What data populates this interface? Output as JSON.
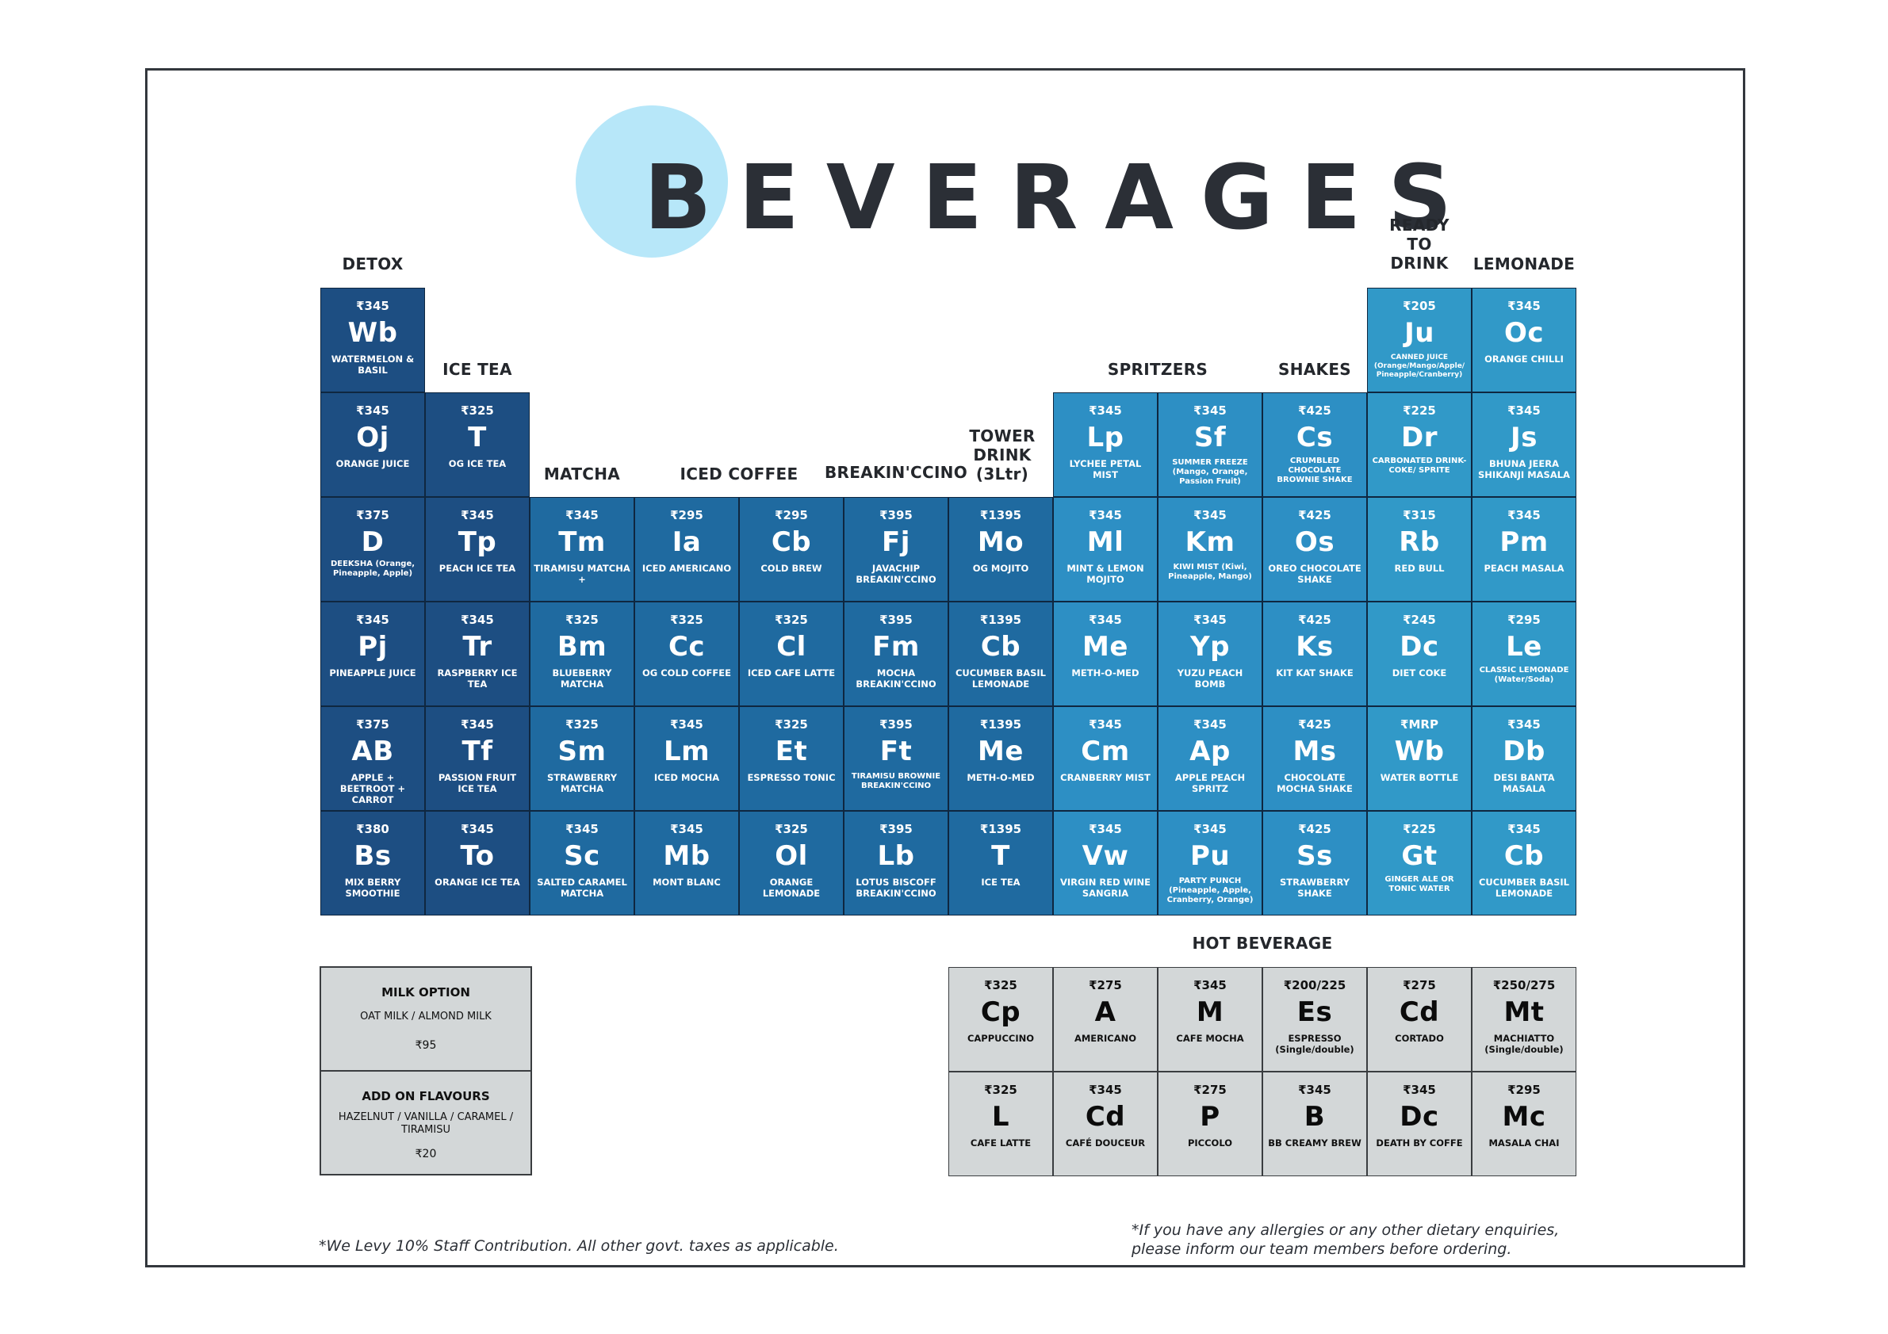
{
  "title": "BEVERAGES",
  "category_labels": [
    {
      "text": "DETOX"
    },
    {
      "text": "ICE TEA"
    },
    {
      "text": "MATCHA"
    },
    {
      "text": "ICED COFFEE"
    },
    {
      "text": "BREAKIN'CCINO"
    },
    {
      "text": "TOWER DRINK (3Ltr)"
    },
    {
      "text": "SPRITZERS"
    },
    {
      "text": "SHAKES"
    },
    {
      "text": "READY TO DRINK"
    },
    {
      "text": "LEMONADE"
    },
    {
      "text": "HOT BEVERAGE"
    }
  ],
  "beverage_cells": [
    {
      "price": "₹345",
      "symbol": "Wb",
      "name": "WATERMELON & BASIL"
    },
    {
      "price": "₹345",
      "symbol": "Oj",
      "name": "ORANGE JUICE"
    },
    {
      "price": "₹375",
      "symbol": "D",
      "name": "DEEKSHA (Orange, Pineapple, Apple)"
    },
    {
      "price": "₹345",
      "symbol": "Pj",
      "name": "PINEAPPLE JUICE"
    },
    {
      "price": "₹375",
      "symbol": "AB",
      "name": "APPLE + BEETROOT + CARROT"
    },
    {
      "price": "₹380",
      "symbol": "Bs",
      "name": "MIX BERRY SMOOTHIE"
    },
    {
      "price": "₹325",
      "symbol": "T",
      "name": "OG ICE TEA"
    },
    {
      "price": "₹345",
      "symbol": "Tp",
      "name": "PEACH ICE TEA"
    },
    {
      "price": "₹345",
      "symbol": "Tr",
      "name": "RASPBERRY ICE TEA"
    },
    {
      "price": "₹345",
      "symbol": "Tf",
      "name": "PASSION FRUIT ICE TEA"
    },
    {
      "price": "₹345",
      "symbol": "To",
      "name": "ORANGE ICE TEA"
    },
    {
      "price": "₹345",
      "symbol": "Tm",
      "name": "TIRAMISU MATCHA +"
    },
    {
      "price": "₹325",
      "symbol": "Bm",
      "name": "BLUEBERRY MATCHA"
    },
    {
      "price": "₹325",
      "symbol": "Sm",
      "name": "STRAWBERRY MATCHA"
    },
    {
      "price": "₹345",
      "symbol": "Sc",
      "name": "SALTED CARAMEL MATCHA"
    },
    {
      "price": "₹295",
      "symbol": "Ia",
      "name": "ICED AMERICANO"
    },
    {
      "price": "₹325",
      "symbol": "Cc",
      "name": "OG COLD COFFEE"
    },
    {
      "price": "₹345",
      "symbol": "Lm",
      "name": "ICED MOCHA"
    },
    {
      "price": "₹345",
      "symbol": "Mb",
      "name": "MONT BLANC"
    },
    {
      "price": "₹295",
      "symbol": "Cb",
      "name": "COLD BREW"
    },
    {
      "price": "₹325",
      "symbol": "Cl",
      "name": "ICED CAFE LATTE"
    },
    {
      "price": "₹325",
      "symbol": "Et",
      "name": "ESPRESSO TONIC"
    },
    {
      "price": "₹325",
      "symbol": "Ol",
      "name": "ORANGE LEMONADE"
    },
    {
      "price": "₹395",
      "symbol": "Fj",
      "name": "JAVACHIP BREAKIN'CCINO"
    },
    {
      "price": "₹395",
      "symbol": "Fm",
      "name": "MOCHA BREAKIN'CCINO"
    },
    {
      "price": "₹395",
      "symbol": "Ft",
      "name": "TIRAMISU BROWNIE BREAKIN'CCINO"
    },
    {
      "price": "₹395",
      "symbol": "Lb",
      "name": "LOTUS BISCOFF BREAKIN'CCINO"
    },
    {
      "price": "₹1395",
      "symbol": "Mo",
      "name": "OG MOJITO"
    },
    {
      "price": "₹1395",
      "symbol": "Cb",
      "name": "CUCUMBER BASIL LEMONADE"
    },
    {
      "price": "₹1395",
      "symbol": "Me",
      "name": "METH-O-MED"
    },
    {
      "price": "₹1395",
      "symbol": "T",
      "name": "ICE TEA"
    },
    {
      "price": "₹345",
      "symbol": "Lp",
      "name": "LYCHEE PETAL MIST"
    },
    {
      "price": "₹345",
      "symbol": "Ml",
      "name": "MINT & LEMON MOJITO"
    },
    {
      "price": "₹345",
      "symbol": "Me",
      "name": "METH-O-MED"
    },
    {
      "price": "₹345",
      "symbol": "Cm",
      "name": "CRANBERRY MIST"
    },
    {
      "price": "₹345",
      "symbol": "Vw",
      "name": "VIRGIN RED WINE SANGRIA"
    },
    {
      "price": "₹345",
      "symbol": "Sf",
      "name": "SUMMER FREEZE (Mango, Orange, Passion Fruit)"
    },
    {
      "price": "₹345",
      "symbol": "Km",
      "name": "KIWI MIST (Kiwi, Pineapple, Mango)"
    },
    {
      "price": "₹345",
      "symbol": "Yp",
      "name": "YUZU PEACH BOMB"
    },
    {
      "price": "₹345",
      "symbol": "Ap",
      "name": "APPLE PEACH SPRITZ"
    },
    {
      "price": "₹345",
      "symbol": "Pu",
      "name": "PARTY PUNCH (Pineapple, Apple, Cranberry, Orange)"
    },
    {
      "price": "₹425",
      "symbol": "Cs",
      "name": "CRUMBLED CHOCOLATE BROWNIE SHAKE"
    },
    {
      "price": "₹425",
      "symbol": "Os",
      "name": "OREO CHOCOLATE SHAKE"
    },
    {
      "price": "₹425",
      "symbol": "Ks",
      "name": "KIT KAT SHAKE"
    },
    {
      "price": "₹425",
      "symbol": "Ms",
      "name": "CHOCOLATE MOCHA SHAKE"
    },
    {
      "price": "₹425",
      "symbol": "Ss",
      "name": "STRAWBERRY SHAKE"
    },
    {
      "price": "₹205",
      "symbol": "Ju",
      "name": "CANNED JUICE (Orange/Mango/Apple/ Pineapple/Cranberry)"
    },
    {
      "price": "₹225",
      "symbol": "Dr",
      "name": "CARBONATED DRINK- COKE/ SPRITE"
    },
    {
      "price": "₹315",
      "symbol": "Rb",
      "name": "RED BULL"
    },
    {
      "price": "₹245",
      "symbol": "Dc",
      "name": "DIET COKE"
    },
    {
      "price": "₹MRP",
      "symbol": "Wb",
      "name": "WATER BOTTLE"
    },
    {
      "price": "₹225",
      "symbol": "Gt",
      "name": "GINGER ALE OR TONIC WATER"
    },
    {
      "price": "₹345",
      "symbol": "Oc",
      "name": "ORANGE CHILLI"
    },
    {
      "price": "₹345",
      "symbol": "Js",
      "name": "BHUNA JEERA SHIKANJI MASALA"
    },
    {
      "price": "₹345",
      "symbol": "Pm",
      "name": "PEACH MASALA"
    },
    {
      "price": "₹295",
      "symbol": "Le",
      "name": "CLASSIC LEMONADE (Water/Soda)"
    },
    {
      "price": "₹345",
      "symbol": "Db",
      "name": "DESI BANTA MASALA"
    },
    {
      "price": "₹345",
      "symbol": "Cb",
      "name": "CUCUMBER BASIL LEMONADE"
    }
  ],
  "hot_cells": [
    {
      "price": "₹325",
      "symbol": "Cp",
      "name": "CAPPUCCINO"
    },
    {
      "price": "₹275",
      "symbol": "A",
      "name": "AMERICANO"
    },
    {
      "price": "₹345",
      "symbol": "M",
      "name": "CAFE MOCHA"
    },
    {
      "price": "₹200/225",
      "symbol": "Es",
      "name": "ESPRESSO (Single/double)"
    },
    {
      "price": "₹275",
      "symbol": "Cd",
      "name": "CORTADO"
    },
    {
      "price": "₹250/275",
      "symbol": "Mt",
      "name": "MACHIATTO (Single/double)"
    },
    {
      "price": "₹325",
      "symbol": "L",
      "name": "CAFE LATTE"
    },
    {
      "price": "₹345",
      "symbol": "Cd",
      "name": "CAFÉ DOUCEUR"
    },
    {
      "price": "₹275",
      "symbol": "P",
      "name": "PICCOLO"
    },
    {
      "price": "₹345",
      "symbol": "B",
      "name": "BB CREAMY BREW"
    },
    {
      "price": "₹345",
      "symbol": "Dc",
      "name": "DEATH BY COFFE"
    },
    {
      "price": "₹295",
      "symbol": "Mc",
      "name": "MASALA CHAI"
    }
  ],
  "milk_option": {
    "heading": "MILK OPTION",
    "options": "OAT MILK / ALMOND MILK",
    "price": "₹95"
  },
  "add_on": {
    "heading": "ADD ON FLAVOURS",
    "options": "HAZELNUT / VANILLA / CARAMEL / TIRAMISU",
    "price": "₹20"
  },
  "footnote_left": "*We Levy 10% Staff Contribution. All other govt. taxes as applicable.",
  "footnote_right": "*If you have any allergies or any other dietary enquiries, please inform our team members before ordering.",
  "colors": {
    "detox_dark": "#1d4e82",
    "mid_blue": "#1f6aa0",
    "spritzer_blue": "#2d8fc4",
    "light_blue": "#3199c8",
    "hot_grey": "#d3d7d8",
    "accent_circle": "#b7e7f9"
  }
}
